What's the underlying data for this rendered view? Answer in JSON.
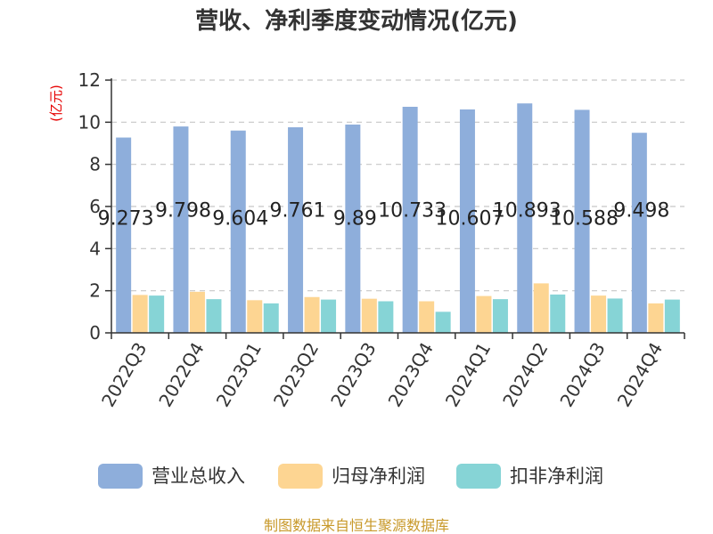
{
  "chart_data": {
    "type": "bar",
    "title": "营收、净利季度变动情况(亿元)",
    "ylabel": "(亿元)",
    "ylim": [
      0,
      12
    ],
    "yticks": [
      0,
      2,
      4,
      6,
      8,
      10,
      12
    ],
    "grid": true,
    "legend_position": "bottom",
    "categories": [
      "2022Q3",
      "2022Q4",
      "2023Q1",
      "2023Q2",
      "2023Q3",
      "2023Q4",
      "2024Q1",
      "2024Q2",
      "2024Q3",
      "2024Q4"
    ],
    "series": [
      {
        "name": "营业总收入",
        "color": "#8eaedb",
        "values": [
          9.273,
          9.798,
          9.604,
          9.761,
          9.89,
          10.733,
          10.607,
          10.893,
          10.588,
          9.498
        ],
        "show_labels": true,
        "labels": [
          "9.273",
          "9.798",
          "9.604",
          "9.761",
          "9.89",
          "10.733",
          "10.607",
          "10.893",
          "10.588",
          "9.498"
        ]
      },
      {
        "name": "归母净利润",
        "color": "#fdd592",
        "values": [
          1.8,
          1.95,
          1.55,
          1.7,
          1.62,
          1.5,
          1.75,
          2.35,
          1.77,
          1.4
        ],
        "show_labels": false
      },
      {
        "name": "扣非净利润",
        "color": "#86d4d6",
        "values": [
          1.77,
          1.6,
          1.4,
          1.58,
          1.5,
          1.0,
          1.6,
          1.82,
          1.63,
          1.58
        ],
        "show_labels": false
      }
    ]
  },
  "source_text": "制图数据来自恒生聚源数据库"
}
